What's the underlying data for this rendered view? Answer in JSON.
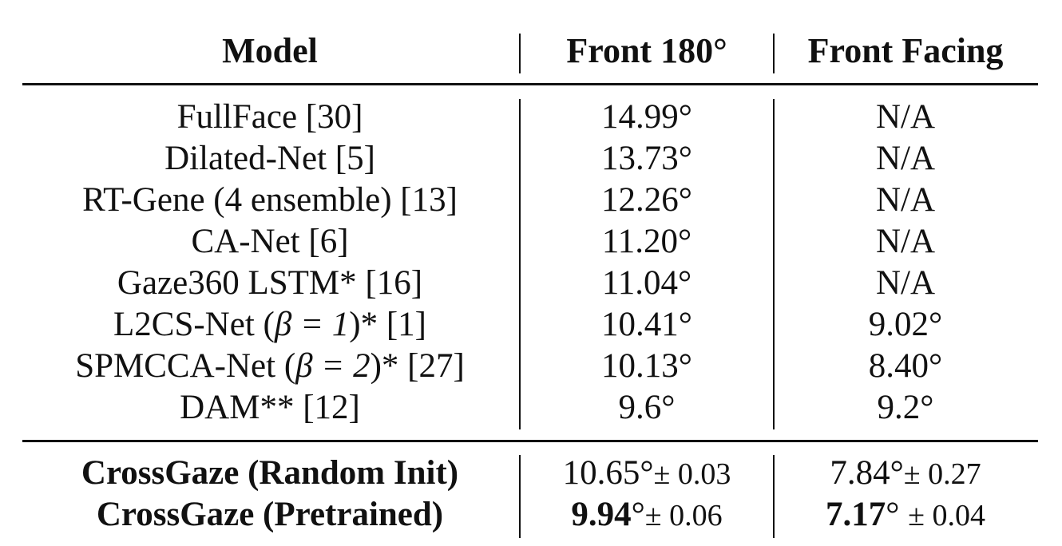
{
  "table": {
    "headers": [
      "Model",
      "Front 180°",
      "Front Facing"
    ],
    "rows": [
      {
        "model": "FullFace [30]",
        "front180": "14.99°",
        "front_facing": "N/A"
      },
      {
        "model": "Dilated-Net [5]",
        "front180": "13.73°",
        "front_facing": "N/A"
      },
      {
        "model": "RT-Gene (4 ensemble) [13]",
        "front180": "12.26°",
        "front_facing": "N/A"
      },
      {
        "model": "CA-Net [6]",
        "front180": "11.20°",
        "front_facing": "N/A"
      },
      {
        "model": "Gaze360 LSTM* [16]",
        "front180": "11.04°",
        "front_facing": "N/A"
      },
      {
        "model_prefix": "L2CS-Net (",
        "model_math": "β = 1",
        "model_suffix": ")* [1]",
        "front180": "10.41°",
        "front_facing": "9.02°"
      },
      {
        "model_prefix": "SPMCCA-Net (",
        "model_math": "β = 2",
        "model_suffix": ")* [27]",
        "front180": "10.13°",
        "front_facing": "8.40°"
      },
      {
        "model": "DAM** [12]",
        "front180": "9.6°",
        "front_facing": "9.2°"
      }
    ],
    "ours": [
      {
        "model": "CrossGaze (Random Init)",
        "front180_value": "10.65°",
        "front180_std": "± 0.03",
        "front_facing_value": "7.84°",
        "front_facing_std": "± 0.27"
      },
      {
        "model": "CrossGaze (Pretrained)",
        "front180_value": "9.94",
        "front180_deg": "°",
        "front180_std": "± 0.06",
        "front_facing_value": "7.17",
        "front_facing_deg": "°",
        "front_facing_std": "± 0.04"
      }
    ]
  }
}
